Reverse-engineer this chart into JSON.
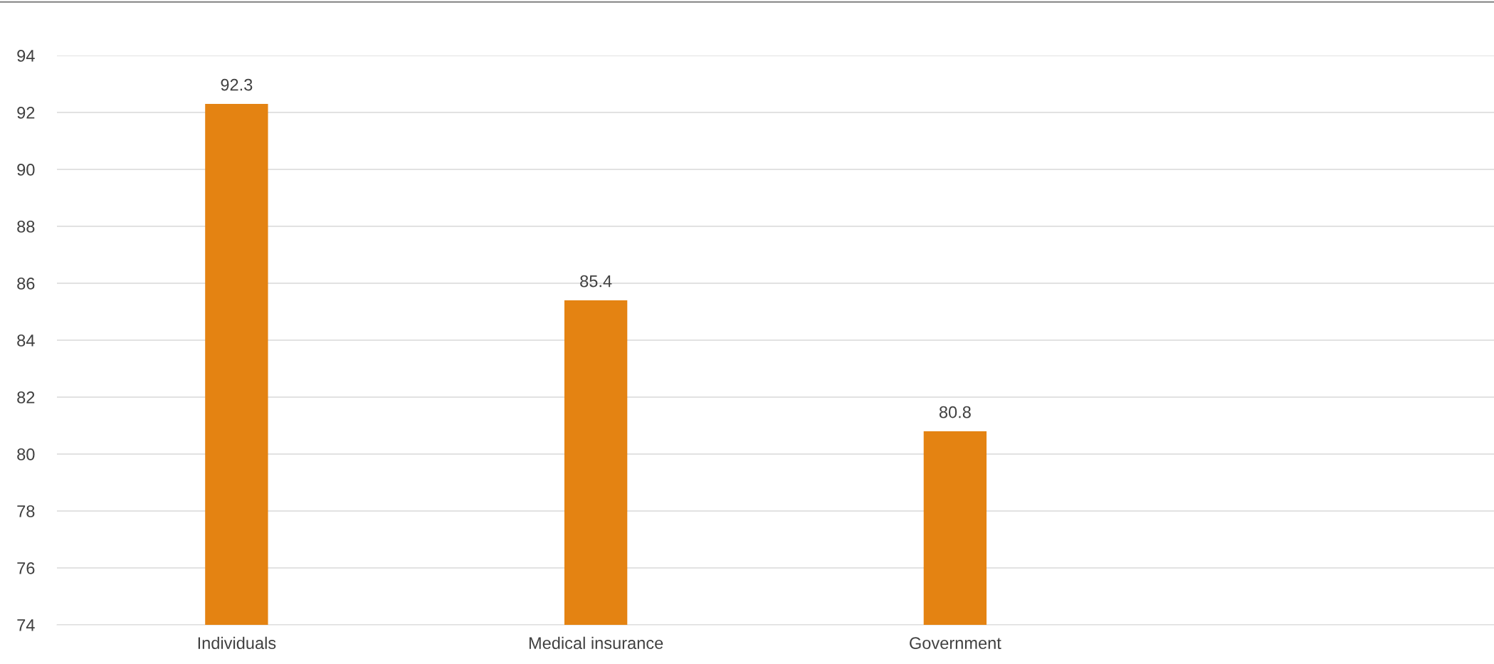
{
  "chart_data": {
    "type": "bar",
    "categories": [
      "Individuals",
      "Medical insurance",
      "Government",
      null
    ],
    "values": [
      92.3,
      85.4,
      80.8,
      null
    ],
    "color": "#e48312",
    "ylim": [
      74,
      94
    ],
    "yticks": [
      74,
      76,
      78,
      80,
      82,
      84,
      86,
      88,
      90,
      92,
      94
    ],
    "grid": "y",
    "data_labels": true
  }
}
